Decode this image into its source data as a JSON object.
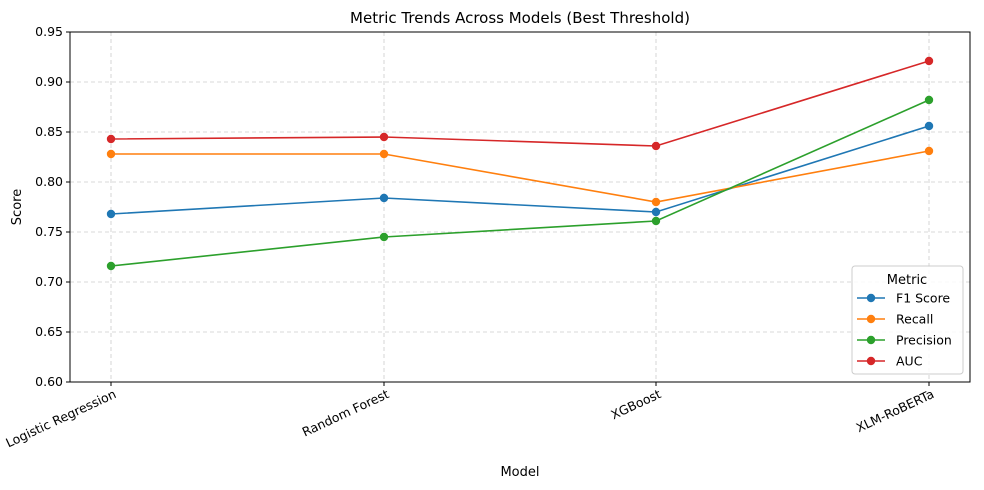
{
  "chart_data": {
    "type": "line",
    "title": "Metric Trends Across Models (Best Threshold)",
    "xlabel": "Model",
    "ylabel": "Score",
    "ylim": [
      0.6,
      0.95
    ],
    "yticks": [
      "0.60",
      "0.65",
      "0.70",
      "0.75",
      "0.80",
      "0.85",
      "0.90",
      "0.95"
    ],
    "categories": [
      "Logistic Regression",
      "Random Forest",
      "XGBoost",
      "XLM-RoBERTa"
    ],
    "grid": true,
    "legend": {
      "title": "Metric",
      "placement": "bottom-right"
    },
    "series": [
      {
        "name": "F1 Score",
        "color": "#1f77b4",
        "values": [
          0.768,
          0.784,
          0.77,
          0.856
        ]
      },
      {
        "name": "Recall",
        "color": "#ff7f0e",
        "values": [
          0.828,
          0.828,
          0.78,
          0.831
        ]
      },
      {
        "name": "Precision",
        "color": "#2ca02c",
        "values": [
          0.716,
          0.745,
          0.761,
          0.882
        ]
      },
      {
        "name": "AUC",
        "color": "#d62728",
        "values": [
          0.843,
          0.845,
          0.836,
          0.921
        ]
      }
    ]
  }
}
